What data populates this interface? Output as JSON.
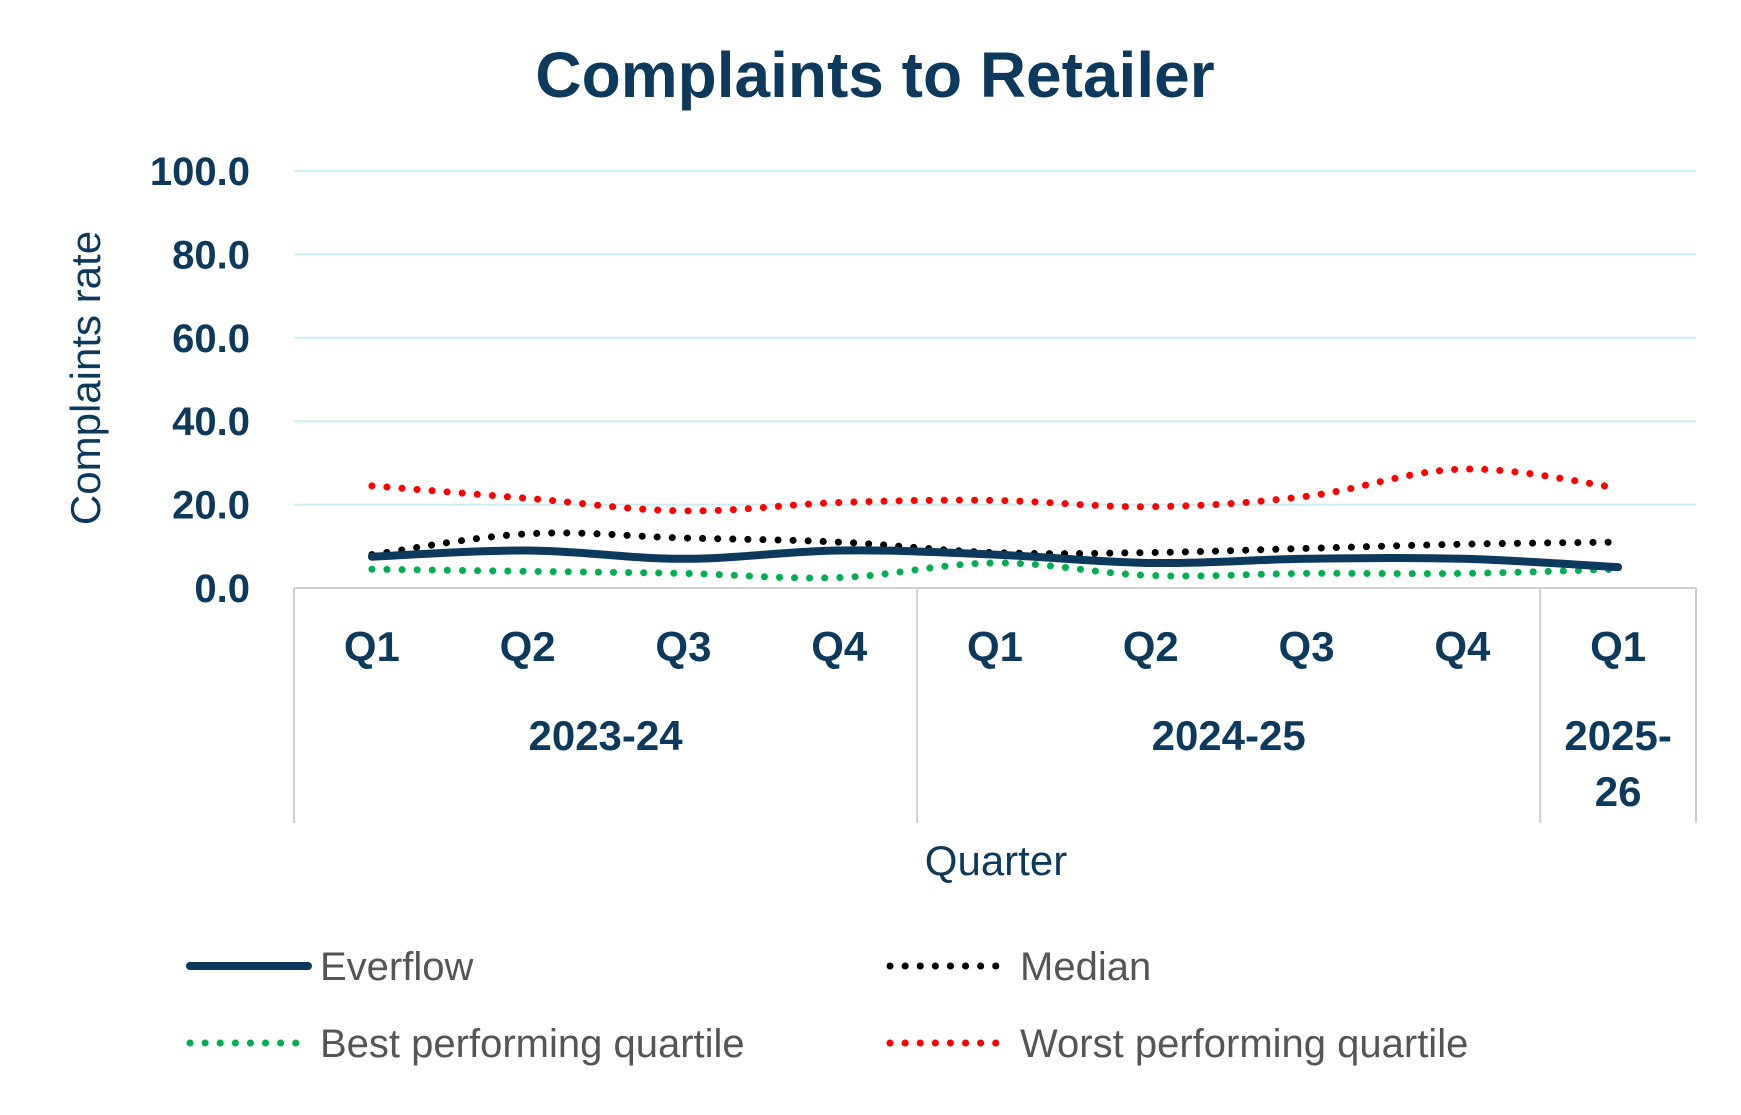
{
  "chart_data": {
    "type": "line",
    "title": "Complaints to Retailer",
    "xlabel": "Quarter",
    "ylabel": "Complaints rate",
    "ylim": [
      0,
      100
    ],
    "yticks": [
      "100.0",
      "80.0",
      "60.0",
      "40.0",
      "20.0",
      "0.0"
    ],
    "categories": [
      "Q1",
      "Q2",
      "Q3",
      "Q4",
      "Q1",
      "Q2",
      "Q3",
      "Q4",
      "Q1"
    ],
    "groups": [
      {
        "label": "2023-24",
        "label_lines": [
          "2023-24"
        ],
        "count": 4
      },
      {
        "label": "2024-25",
        "label_lines": [
          "2024-25"
        ],
        "count": 4
      },
      {
        "label": "2025-26",
        "label_lines": [
          "2025-",
          "26"
        ],
        "count": 1
      }
    ],
    "series": [
      {
        "name": "Everflow",
        "style": "solid",
        "color": "#0d3a5c",
        "values": [
          7.5,
          9.0,
          7.0,
          9.0,
          8.0,
          6.0,
          7.0,
          7.0,
          5.0
        ]
      },
      {
        "name": "Median",
        "style": "dotted",
        "color": "#000000",
        "values": [
          8.0,
          13.0,
          12.0,
          11.0,
          8.5,
          8.5,
          9.5,
          10.5,
          11.0
        ]
      },
      {
        "name": "Best performing quartile",
        "style": "dotted",
        "color": "#00b050",
        "values": [
          4.5,
          4.0,
          3.5,
          2.5,
          6.0,
          3.0,
          3.5,
          3.5,
          4.5
        ]
      },
      {
        "name": "Worst performing quartile",
        "style": "dotted",
        "color": "#ff0000",
        "values": [
          24.5,
          21.5,
          18.5,
          20.5,
          21.0,
          19.5,
          22.0,
          28.5,
          24.0
        ]
      }
    ],
    "grid": true,
    "legend_position": "bottom"
  }
}
